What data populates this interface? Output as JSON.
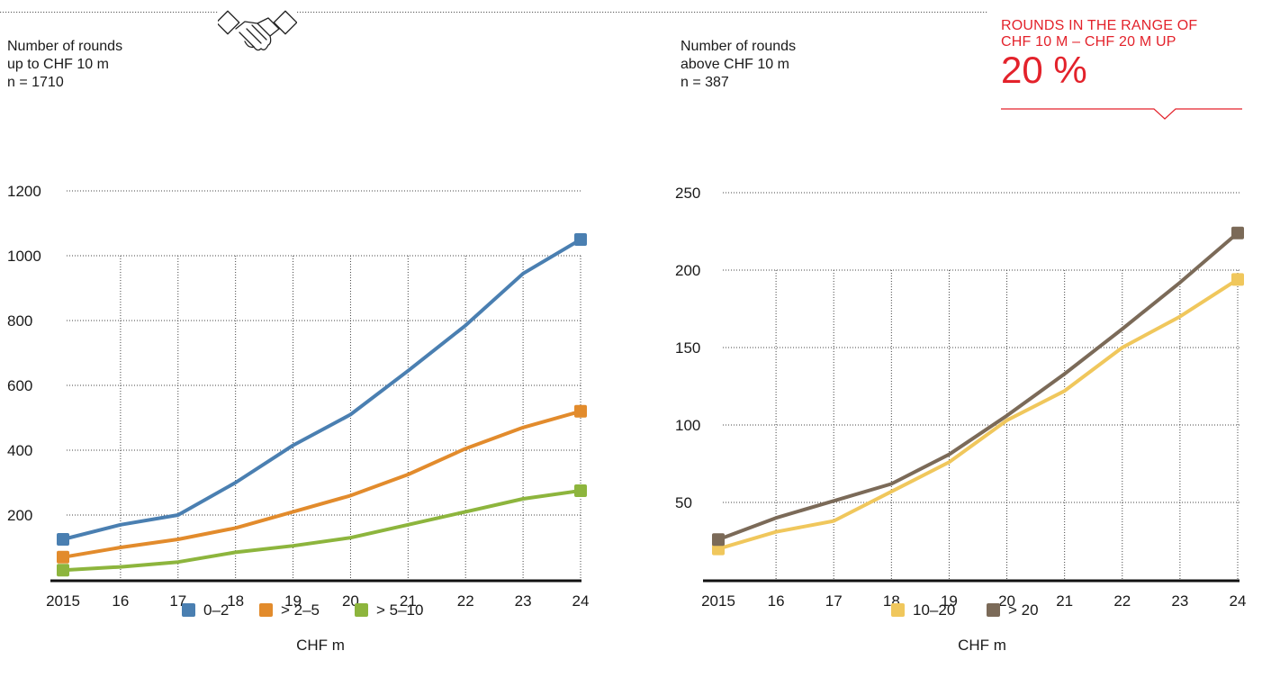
{
  "header": {
    "left_desc": [
      "Number of rounds",
      "up to CHF 10 m",
      "n = 1710"
    ],
    "right_desc": [
      "Number of rounds",
      "above CHF 10 m",
      "n = 387"
    ],
    "highlight": {
      "text_lines": [
        "ROUNDS IN THE RANGE OF",
        "CHF 10 M – CHF 20 M UP"
      ],
      "value": "20 %",
      "color": "#e3222b"
    },
    "icon": "handshake-icon"
  },
  "chart_data": [
    {
      "type": "line",
      "title": "",
      "x": [
        "2015",
        "16",
        "17",
        "18",
        "19",
        "20",
        "21",
        "22",
        "23",
        "24"
      ],
      "ylim": [
        0,
        1200
      ],
      "yticks": [
        200,
        400,
        600,
        800,
        1000,
        1200
      ],
      "grid": true,
      "legend_position": "bottom",
      "xlabel": "CHF m",
      "series": [
        {
          "name": "0–2",
          "color": "#4a7fb1",
          "values": [
            125,
            170,
            200,
            300,
            415,
            510,
            645,
            785,
            945,
            1050
          ]
        },
        {
          "name": "> 2–5",
          "color": "#e28b2c",
          "values": [
            70,
            100,
            125,
            160,
            210,
            260,
            325,
            405,
            470,
            520
          ]
        },
        {
          "name": "> 5–10",
          "color": "#8db53d",
          "values": [
            30,
            40,
            55,
            85,
            105,
            130,
            170,
            210,
            250,
            275
          ]
        }
      ]
    },
    {
      "type": "line",
      "title": "",
      "x": [
        "2015",
        "16",
        "17",
        "18",
        "19",
        "20",
        "21",
        "22",
        "23",
        "24"
      ],
      "ylim": [
        0,
        250
      ],
      "yticks": [
        50,
        100,
        150,
        200,
        250
      ],
      "grid": true,
      "legend_position": "bottom",
      "xlabel": "CHF m",
      "series": [
        {
          "name": "10–20",
          "color": "#f0c75c",
          "values": [
            20,
            31,
            38,
            57,
            76,
            103,
            122,
            150,
            170,
            194
          ]
        },
        {
          "name": "> 20",
          "color": "#7b6a58",
          "values": [
            26,
            40,
            51,
            62,
            81,
            106,
            133,
            162,
            192,
            224
          ]
        }
      ]
    }
  ]
}
